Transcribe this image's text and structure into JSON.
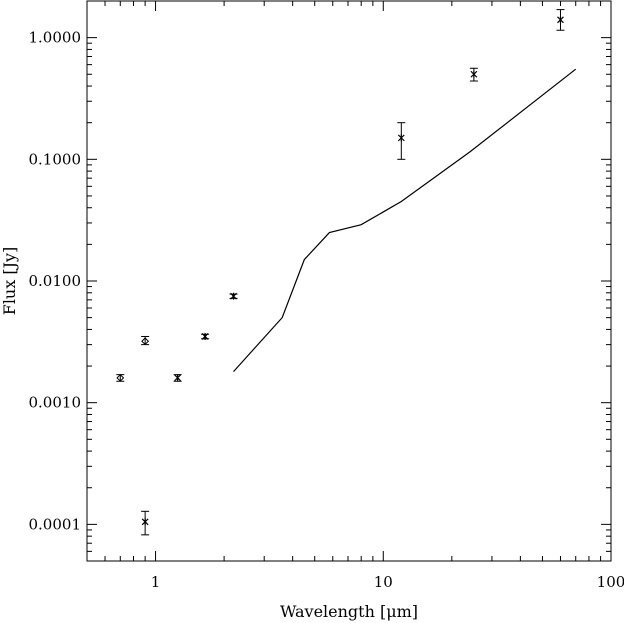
{
  "chart_data": {
    "type": "scatter",
    "xlabel": "Wavelength [μm]",
    "ylabel": "Flux [Jy]",
    "x_scale": "log",
    "y_scale": "log",
    "xlim": [
      0.5,
      100
    ],
    "ylim": [
      5e-05,
      2.0
    ],
    "x_ticks": [
      {
        "value": 1,
        "label": "1"
      },
      {
        "value": 10,
        "label": "10"
      },
      {
        "value": 100,
        "label": "100"
      }
    ],
    "y_ticks": [
      {
        "value": 0.0001,
        "label": "0.0001"
      },
      {
        "value": 0.001,
        "label": "0.0010"
      },
      {
        "value": 0.01,
        "label": "0.0100"
      },
      {
        "value": 0.1,
        "label": "0.1000"
      },
      {
        "value": 1,
        "label": "1.0000"
      }
    ],
    "grid": false,
    "series": [
      {
        "style": "diamond-markers",
        "points": [
          {
            "x": 0.7,
            "y": 0.0016,
            "ylo": 0.0015,
            "yhi": 0.0017
          },
          {
            "x": 0.9,
            "y": 0.0032,
            "ylo": 0.003,
            "yhi": 0.0035
          }
        ]
      },
      {
        "style": "asterisk-markers",
        "points": [
          {
            "x": 0.9,
            "y": 0.000105,
            "ylo": 8.2e-05,
            "yhi": 0.000128
          },
          {
            "x": 1.25,
            "y": 0.0016,
            "ylo": 0.0015,
            "yhi": 0.0017
          },
          {
            "x": 1.65,
            "y": 0.0035,
            "ylo": 0.00335,
            "yhi": 0.00365
          },
          {
            "x": 2.2,
            "y": 0.0075,
            "ylo": 0.0072,
            "yhi": 0.0078
          },
          {
            "x": 12,
            "y": 0.15,
            "ylo": 0.1,
            "yhi": 0.2
          },
          {
            "x": 25,
            "y": 0.5,
            "ylo": 0.44,
            "yhi": 0.56
          },
          {
            "x": 60,
            "y": 1.4,
            "ylo": 1.15,
            "yhi": 1.7
          }
        ]
      },
      {
        "style": "line",
        "points": [
          {
            "x": 2.2,
            "y": 0.0018
          },
          {
            "x": 3.6,
            "y": 0.005
          },
          {
            "x": 4.5,
            "y": 0.015
          },
          {
            "x": 5.8,
            "y": 0.025
          },
          {
            "x": 8.0,
            "y": 0.029
          },
          {
            "x": 12,
            "y": 0.045
          },
          {
            "x": 24,
            "y": 0.115
          },
          {
            "x": 70,
            "y": 0.55
          }
        ]
      }
    ]
  }
}
